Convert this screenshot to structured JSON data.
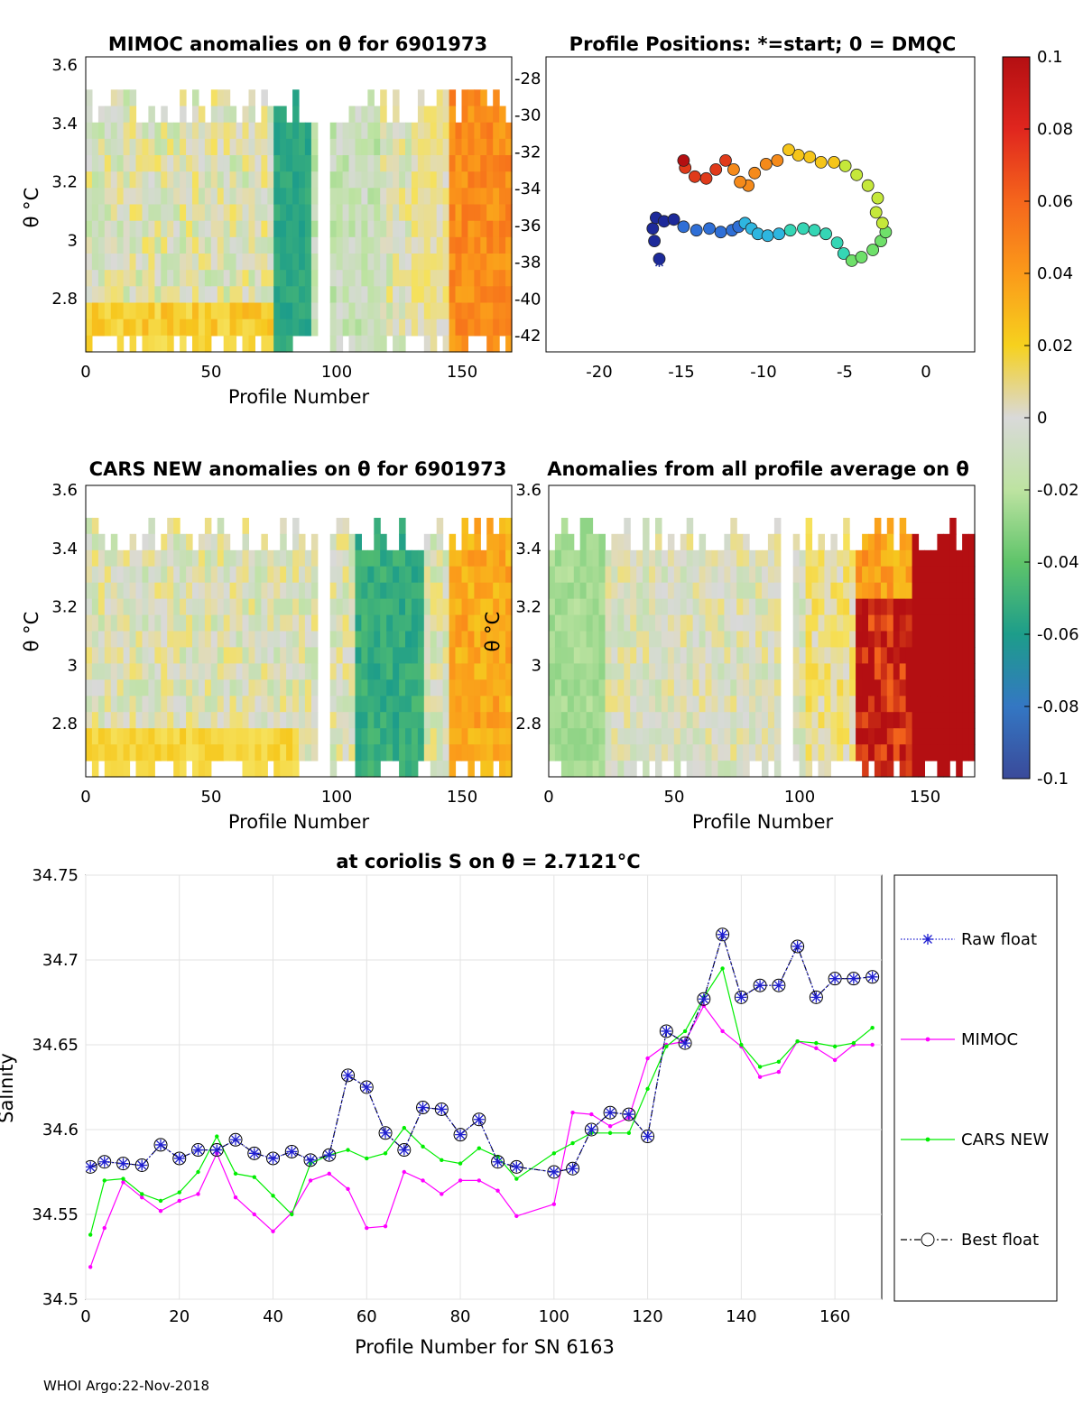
{
  "panels": {
    "mimoc": {
      "title": "MIMOC anomalies on θ  for 6901973",
      "ylabel": "θ °C",
      "xlabel": "Profile Number",
      "yticks": [
        "3.6",
        "3.4",
        "3.2",
        "3",
        "2.8"
      ],
      "xticks": [
        "0",
        "50",
        "100",
        "150"
      ]
    },
    "positions": {
      "title": "Profile Positions: *=start; 0 = DMQC",
      "yticks": [
        "-28",
        "-30",
        "-32",
        "-34",
        "-36",
        "-38",
        "-40",
        "-42"
      ],
      "xticks": [
        "-20",
        "-15",
        "-10",
        "-5",
        "0"
      ]
    },
    "cars": {
      "title": "CARS NEW anomalies on θ for 6901973",
      "ylabel": "θ °C",
      "xlabel": "Profile Number",
      "yticks": [
        "3.6",
        "3.4",
        "3.2",
        "3",
        "2.8"
      ],
      "xticks": [
        "0",
        "50",
        "100",
        "150"
      ]
    },
    "allavg": {
      "title": "Anomalies from all profile average on θ",
      "ylabel": "θ °C",
      "xlabel": "Profile Number",
      "yticks": [
        "3.6",
        "3.4",
        "3.2",
        "3",
        "2.8"
      ],
      "xticks": [
        "0",
        "50",
        "100",
        "150"
      ]
    },
    "colorbar": {
      "ticks": [
        "0.1",
        "0.08",
        "0.06",
        "0.04",
        "0.02",
        "0",
        "-0.02",
        "-0.04",
        "-0.06",
        "-0.08",
        "-0.1"
      ]
    }
  },
  "chart_data": {
    "type": "line",
    "title": "at coriolis S on θ = 2.7121°C",
    "xlabel": "Profile Number for SN 6163",
    "ylabel": "Salinity",
    "xlim": [
      0,
      170
    ],
    "ylim": [
      34.5,
      34.75
    ],
    "xticks": [
      "0",
      "20",
      "40",
      "60",
      "80",
      "100",
      "120",
      "140",
      "160"
    ],
    "yticks": [
      "34.75",
      "34.7",
      "34.65",
      "34.6",
      "34.55",
      "34.5"
    ],
    "grid": true,
    "legend_position": "right-outside",
    "series": [
      {
        "name": "Raw float",
        "color": "#1f1fd0",
        "x": [
          1,
          4,
          8,
          12,
          16,
          20,
          24,
          28,
          32,
          36,
          40,
          44,
          48,
          52,
          56,
          60,
          64,
          68,
          72,
          76,
          80,
          84,
          88,
          92,
          100,
          104,
          108,
          112,
          116,
          120,
          124,
          128,
          132,
          136,
          140,
          144,
          148,
          152,
          156,
          160,
          164,
          168
        ],
        "values": [
          34.578,
          34.581,
          34.58,
          34.579,
          34.591,
          34.583,
          34.588,
          34.588,
          34.594,
          34.586,
          34.583,
          34.587,
          34.582,
          34.585,
          34.632,
          34.625,
          34.598,
          34.588,
          34.613,
          34.612,
          34.597,
          34.606,
          34.581,
          34.578,
          34.575,
          34.577,
          34.6,
          34.61,
          34.609,
          34.596,
          34.658,
          34.651,
          34.677,
          34.715,
          34.678,
          34.685,
          34.685,
          34.708,
          34.678,
          34.689,
          34.689,
          34.69
        ]
      },
      {
        "name": "MIMOC",
        "color": "#ff00ff",
        "x": [
          1,
          4,
          8,
          12,
          16,
          20,
          24,
          28,
          32,
          36,
          40,
          44,
          48,
          52,
          56,
          60,
          64,
          68,
          72,
          76,
          80,
          84,
          88,
          92,
          100,
          104,
          108,
          112,
          116,
          120,
          124,
          128,
          132,
          136,
          140,
          144,
          148,
          152,
          156,
          160,
          164,
          168
        ],
        "values": [
          34.519,
          34.542,
          34.569,
          34.56,
          34.552,
          34.558,
          34.562,
          34.586,
          34.56,
          34.55,
          34.54,
          34.551,
          34.57,
          34.574,
          34.565,
          34.542,
          34.543,
          34.575,
          34.57,
          34.562,
          34.57,
          34.57,
          34.564,
          34.549,
          34.556,
          34.61,
          34.609,
          34.602,
          34.607,
          34.642,
          34.65,
          34.652,
          34.673,
          34.658,
          34.649,
          34.631,
          34.634,
          34.652,
          34.648,
          34.641,
          34.65,
          34.65
        ]
      },
      {
        "name": "CARS NEW",
        "color": "#00ee00",
        "x": [
          1,
          4,
          8,
          12,
          16,
          20,
          24,
          28,
          32,
          36,
          40,
          44,
          48,
          52,
          56,
          60,
          64,
          68,
          72,
          76,
          80,
          84,
          88,
          92,
          100,
          104,
          108,
          112,
          116,
          120,
          124,
          128,
          132,
          136,
          140,
          144,
          148,
          152,
          156,
          160,
          164,
          168
        ],
        "values": [
          34.538,
          34.57,
          34.571,
          34.562,
          34.558,
          34.563,
          34.575,
          34.596,
          34.574,
          34.572,
          34.561,
          34.55,
          34.58,
          34.585,
          34.588,
          34.583,
          34.586,
          34.601,
          34.59,
          34.582,
          34.58,
          34.589,
          34.584,
          34.571,
          34.586,
          34.592,
          34.598,
          34.598,
          34.598,
          34.624,
          34.649,
          34.658,
          34.678,
          34.695,
          34.65,
          34.637,
          34.64,
          34.652,
          34.651,
          34.649,
          34.651,
          34.66
        ]
      },
      {
        "name": "Best float",
        "color": "#000000",
        "x": [
          1,
          4,
          8,
          12,
          16,
          20,
          24,
          28,
          32,
          36,
          40,
          44,
          48,
          52,
          56,
          60,
          64,
          68,
          72,
          76,
          80,
          84,
          88,
          92,
          100,
          104,
          108,
          112,
          116,
          120,
          124,
          128,
          132,
          136,
          140,
          144,
          148,
          152,
          156,
          160,
          164,
          168
        ],
        "values": [
          34.578,
          34.581,
          34.58,
          34.579,
          34.591,
          34.583,
          34.588,
          34.588,
          34.594,
          34.586,
          34.583,
          34.587,
          34.582,
          34.585,
          34.632,
          34.625,
          34.598,
          34.588,
          34.613,
          34.612,
          34.597,
          34.606,
          34.581,
          34.578,
          34.575,
          34.577,
          34.6,
          34.61,
          34.609,
          34.596,
          34.658,
          34.651,
          34.677,
          34.715,
          34.678,
          34.685,
          34.685,
          34.708,
          34.678,
          34.689,
          34.689,
          34.69
        ]
      }
    ]
  },
  "footer": "WHOI Argo:22-Nov-2018"
}
